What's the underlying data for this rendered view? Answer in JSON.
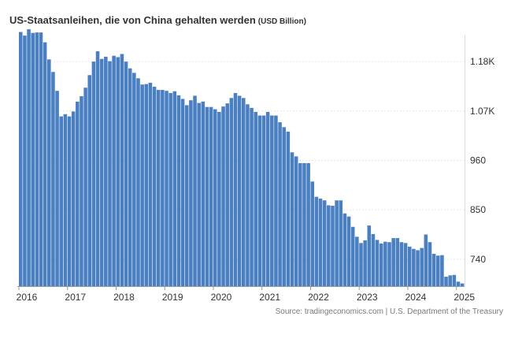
{
  "title": "US-Staatsanleihen, die von China gehalten werden",
  "unit": "(USD Billion)",
  "source": "Source: tradingeconomics.com | U.S. Department of the Treasury",
  "colors": {
    "bar": "#4a7fc1",
    "grid": "#e6e6e6",
    "axis": "#999999"
  },
  "chart_data": {
    "type": "bar",
    "title": "US-Staatsanleihen, die von China gehalten werden",
    "unit": "USD Billion",
    "grid": true,
    "y_axis_position": "right",
    "ylim": [
      680,
      1240
    ],
    "yticks": [
      740,
      850,
      960,
      1070,
      1180
    ],
    "ytick_labels": [
      "740",
      "850",
      "960",
      "1.07K",
      "1.18K"
    ],
    "xtick_labels": [
      "2016",
      "2017",
      "2018",
      "2019",
      "2020",
      "2021",
      "2022",
      "2023",
      "2024",
      "2025"
    ],
    "start": "2016-01",
    "frequency": "monthly",
    "values": [
      1246,
      1238,
      1252,
      1244,
      1245,
      1245,
      1223,
      1185,
      1157,
      1115,
      1058,
      1063,
      1058,
      1069,
      1091,
      1103,
      1122,
      1150,
      1180,
      1203,
      1186,
      1191,
      1181,
      1193,
      1190,
      1197,
      1180,
      1165,
      1155,
      1143,
      1129,
      1130,
      1133,
      1124,
      1117,
      1117,
      1115,
      1110,
      1114,
      1105,
      1097,
      1083,
      1094,
      1104,
      1088,
      1091,
      1079,
      1079,
      1074,
      1068,
      1080,
      1087,
      1099,
      1110,
      1104,
      1099,
      1085,
      1077,
      1068,
      1060,
      1060,
      1068,
      1060,
      1060,
      1045,
      1034,
      1024,
      978,
      969,
      954,
      954,
      954,
      913,
      879,
      875,
      871,
      860,
      859,
      871,
      871,
      842,
      835,
      812,
      790,
      776,
      782,
      815,
      796,
      783,
      775,
      779,
      778,
      787,
      787,
      778,
      776,
      768,
      763,
      760,
      765,
      795,
      778,
      752,
      748,
      749,
      701,
      704,
      705,
      690,
      686
    ]
  }
}
